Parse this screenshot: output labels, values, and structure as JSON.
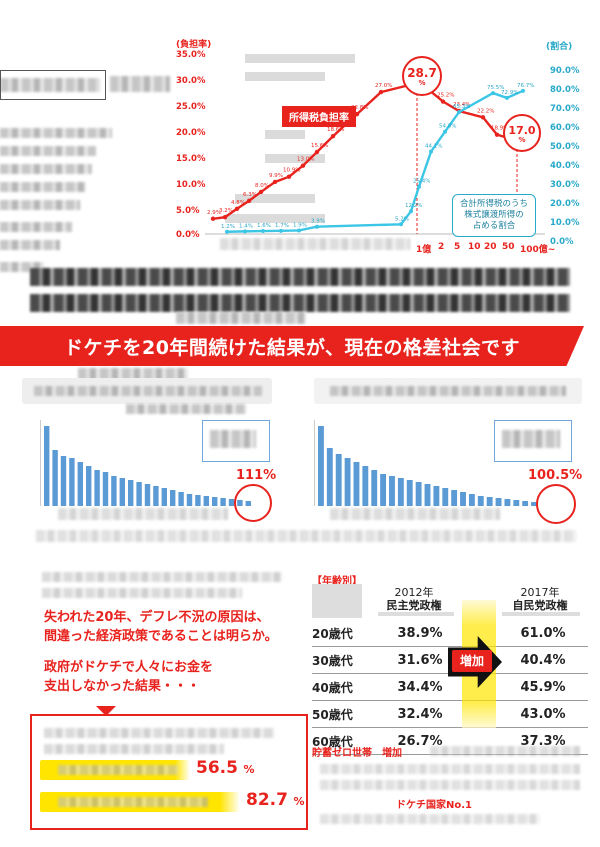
{
  "top_chart": {
    "left_axis_title": "(負担率)",
    "right_axis_title": "(割合)",
    "left_ticks": [
      "35.0%",
      "30.0%",
      "25.0%",
      "20.0%",
      "15.0%",
      "10.0%",
      "5.0%",
      "0.0%"
    ],
    "right_ticks": [
      "90.0%",
      "80.0%",
      "70.0%",
      "60.0%",
      "50.0%",
      "40.0%",
      "30.0%",
      "20.0%",
      "10.0%",
      "0.0%"
    ],
    "x_labels": [
      "1億",
      "2",
      "5",
      "10",
      "20",
      "50",
      "100億~"
    ],
    "red_series_label": "所得税負担率",
    "blue_series_label": "合計所得税のうち 株式譲渡所得の 占める割合",
    "peak_label": "28.7",
    "peak_unit": "%",
    "end_label": "17.0",
    "end_unit": "%",
    "red_values": [
      "2.9%",
      "3.2%",
      "4.8%",
      "6.3%",
      "8.0%",
      "9.9%",
      "10.9%",
      "13.0%",
      "15.6%",
      "18.6%",
      "22.8%",
      "27.0%",
      "28.7",
      "27.4%",
      "25.2%",
      "23.4%",
      "22.2%",
      "18.9%",
      "18.1%",
      "17.0"
    ],
    "blue_values": [
      "1.2%",
      "1.4%",
      "1.6%",
      "1.7%",
      "1.9%",
      "3.9%",
      "5.2%",
      "12.2%",
      "25.4%",
      "44.1%",
      "54.8%",
      "65.3%",
      "75.5%",
      "72.9%",
      "76.7%"
    ],
    "colors": {
      "red": "#e8231e",
      "blue": "#3cc6e6"
    }
  },
  "headline": "ドケチを20年間続けた結果が、現在の格差社会です",
  "left_panel": {
    "percent": "111%"
  },
  "right_panel": {
    "percent": "100.5%"
  },
  "age_table": {
    "section_label": "【年齢別】",
    "col_2012_year": "2012年",
    "col_2012_party": "民主党政権",
    "col_2017_year": "2017年",
    "col_2017_party": "自民党政権",
    "increase_label": "増加",
    "rows": [
      {
        "age": "20歳代",
        "v2012": "38.9%",
        "v2017": "61.0%"
      },
      {
        "age": "30歳代",
        "v2012": "31.6%",
        "v2017": "40.4%"
      },
      {
        "age": "40歳代",
        "v2012": "34.4%",
        "v2017": "45.9%"
      },
      {
        "age": "50歳代",
        "v2012": "32.4%",
        "v2017": "43.0%"
      },
      {
        "age": "60歳代",
        "v2012": "26.7%",
        "v2017": "37.3%"
      }
    ],
    "footer_label": "貯蓄ゼロ世帯　増加",
    "footer_label2": "ドケチ国家No.1"
  },
  "lost_years": {
    "line1": "失われた20年、デフレ不況の原因は、",
    "line2": "間違った経済政策であることは明らか。",
    "line3": "政府がドケチで人々にお金を",
    "line4": "支出しなかった結果・・・",
    "stat1_value": "56.5",
    "stat1_unit": "%",
    "stat2_value": "82.7",
    "stat2_unit": "%"
  },
  "colors": {
    "accent_red": "#e8231e",
    "accent_blue": "#6fa8dc",
    "highlight_yellow": "#ffe500"
  }
}
